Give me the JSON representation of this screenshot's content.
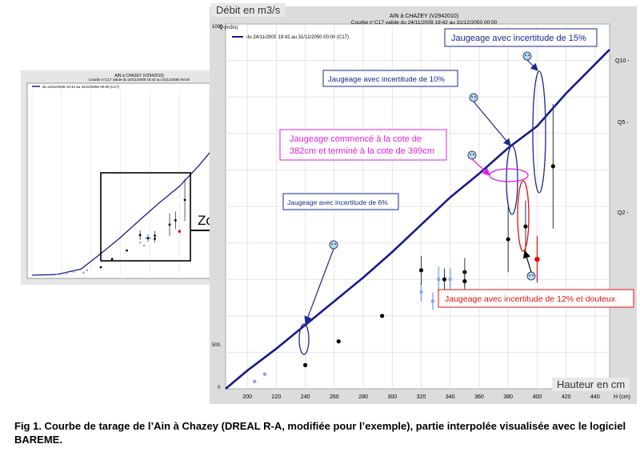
{
  "main": {
    "title": "AIN à CHAZEY (V2942010)",
    "subtitle": "Courbe n°C17 valide du 24/11/2009 19:42 au 31/12/2050 00:00",
    "legend_label": "du 24/11/2009 19:42 au 31/12/2050 00:00 (C17)",
    "ylabel_tag": "Débit en m3/s",
    "xlabel_tag": "Hauteur en cm",
    "yaxis_unit": "Q (m3/s)",
    "xaxis_unit": "H (cm)",
    "right_ticks": [
      "Q10 -",
      "Q5 -",
      "Q2 -"
    ],
    "y_ticks": [
      "1000.",
      "500.",
      "0"
    ]
  },
  "small": {
    "title": "AIN à CHAZEY (V2942010)",
    "subtitle": "Courbe n°C17 valide du 24/11/2009 19:42 au 31/12/2050 00:00",
    "legend_label": "du 24/11/2009 19:42 au 31/12/2050 00:00 (C17)"
  },
  "zoom_label": "Zoom",
  "caption": "Fig 1. Courbe de tarage de l’Ain à Chazey (DREAL R-A, modifiée pour l’exemple), partie interpolée visualisée avec le logiciel BAREME.",
  "annotations": {
    "a15": "Jaugeage avec incertitude de 15%",
    "a10": "Jaugeage avec incertitude de 10%",
    "a_cote": "Jaugeage commencé à la cote de 382cm et terminé à la cote de 399cm",
    "a6": "Jaugeage avec incertitude de 6%",
    "a12": "Jaugeage avec incertitude de 12% et douteux"
  },
  "colors": {
    "curve": "#1a1a8c",
    "gauging": "#000000",
    "doubtful": "#e01010",
    "light_points": "#8aa8e8",
    "annot_blue": "#1a2a8c",
    "annot_magenta": "#e020e0",
    "annot_red": "#e01010"
  },
  "chart_data": {
    "type": "scatter",
    "xlabel": "H (cm)",
    "ylabel": "Q (m3/s)",
    "xlim": [
      185,
      450
    ],
    "ylim": [
      0,
      1000
    ],
    "x_ticks": [
      200,
      220,
      240,
      260,
      280,
      300,
      320,
      340,
      360,
      380,
      400,
      420,
      440
    ],
    "y_ticks": [
      0,
      500,
      1000
    ],
    "grid": true,
    "legend": "top-left",
    "curve": {
      "x": [
        185,
        200,
        220,
        240,
        260,
        280,
        300,
        320,
        340,
        360,
        380,
        400,
        420,
        440,
        450
      ],
      "y": [
        0,
        50,
        110,
        175,
        240,
        305,
        375,
        450,
        525,
        590,
        660,
        720,
        810,
        890,
        930
      ]
    },
    "gaugings": [
      {
        "x": 240,
        "y": 65,
        "err": 4
      },
      {
        "x": 263,
        "y": 130,
        "err": 0
      },
      {
        "x": 293,
        "y": 200,
        "err": 0
      },
      {
        "x": 320,
        "y": 325,
        "err": 12
      },
      {
        "x": 336,
        "y": 300,
        "err": 10
      },
      {
        "x": 350,
        "y": 320,
        "err": 12
      },
      {
        "x": 350,
        "y": 295,
        "err": 10
      },
      {
        "x": 380,
        "y": 410,
        "err": 22
      },
      {
        "x": 392,
        "y": 445,
        "err": 16
      },
      {
        "x": 411,
        "y": 610,
        "err": 28
      }
    ],
    "doubtful_gauging": {
      "x": 400,
      "y": 355,
      "err": 18
    },
    "light_gaugings": [
      {
        "x": 205,
        "y": 20,
        "err": 4
      },
      {
        "x": 212,
        "y": 40,
        "err": 5
      },
      {
        "x": 320,
        "y": 265,
        "err": 10
      },
      {
        "x": 328,
        "y": 240,
        "err": 10
      },
      {
        "x": 332,
        "y": 300,
        "err": 12
      },
      {
        "x": 340,
        "y": 300,
        "err": 10
      }
    ]
  }
}
